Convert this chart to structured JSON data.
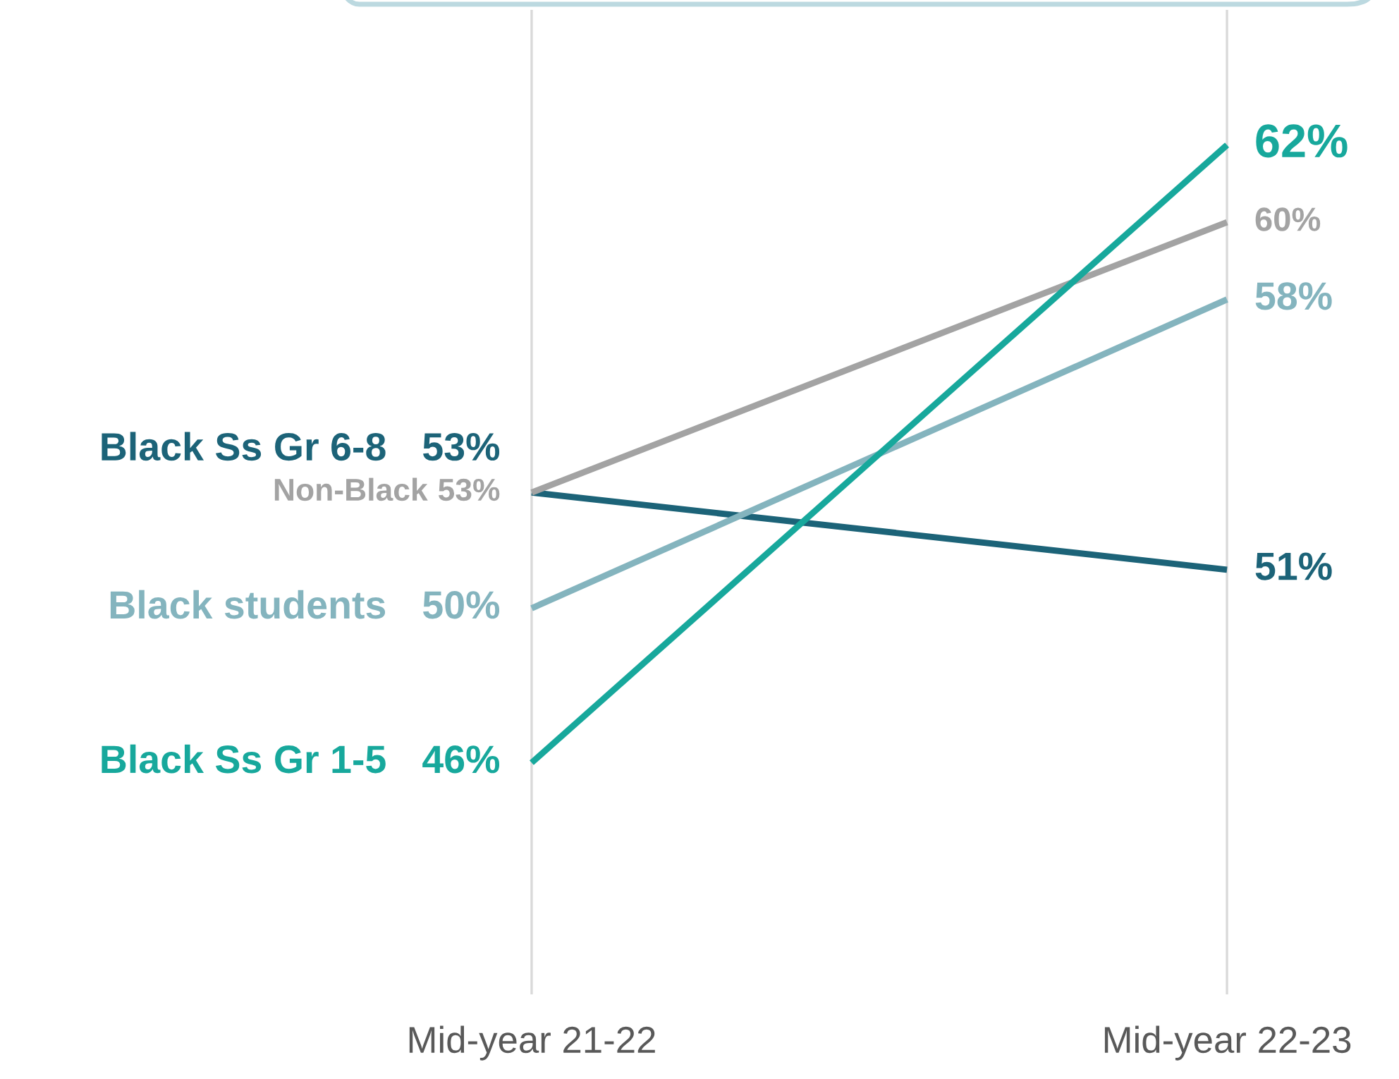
{
  "chart_data": {
    "type": "line",
    "categories": [
      "Mid-year 21-22",
      "Mid-year 22-23"
    ],
    "ylim": [
      40,
      65.5
    ],
    "grid": "x",
    "tick_labels": "x",
    "line_style": "solid",
    "series": [
      {
        "name": "Black Ss Gr 6-8",
        "color": "#1c6378",
        "values": [
          53,
          51
        ],
        "value_labels": [
          "53%",
          "51%"
        ]
      },
      {
        "name": "Non-Black",
        "color": "#a3a3a3",
        "values": [
          53,
          60
        ],
        "value_labels": [
          "53%",
          "60%"
        ]
      },
      {
        "name": "Black students",
        "color": "#84b4be",
        "values": [
          50,
          58
        ],
        "value_labels": [
          "50%",
          "58%"
        ]
      },
      {
        "name": "Black Ss Gr 1-5",
        "color": "#17a89c",
        "values": [
          46,
          62
        ],
        "value_labels": [
          "46%",
          "62%"
        ]
      }
    ]
  }
}
